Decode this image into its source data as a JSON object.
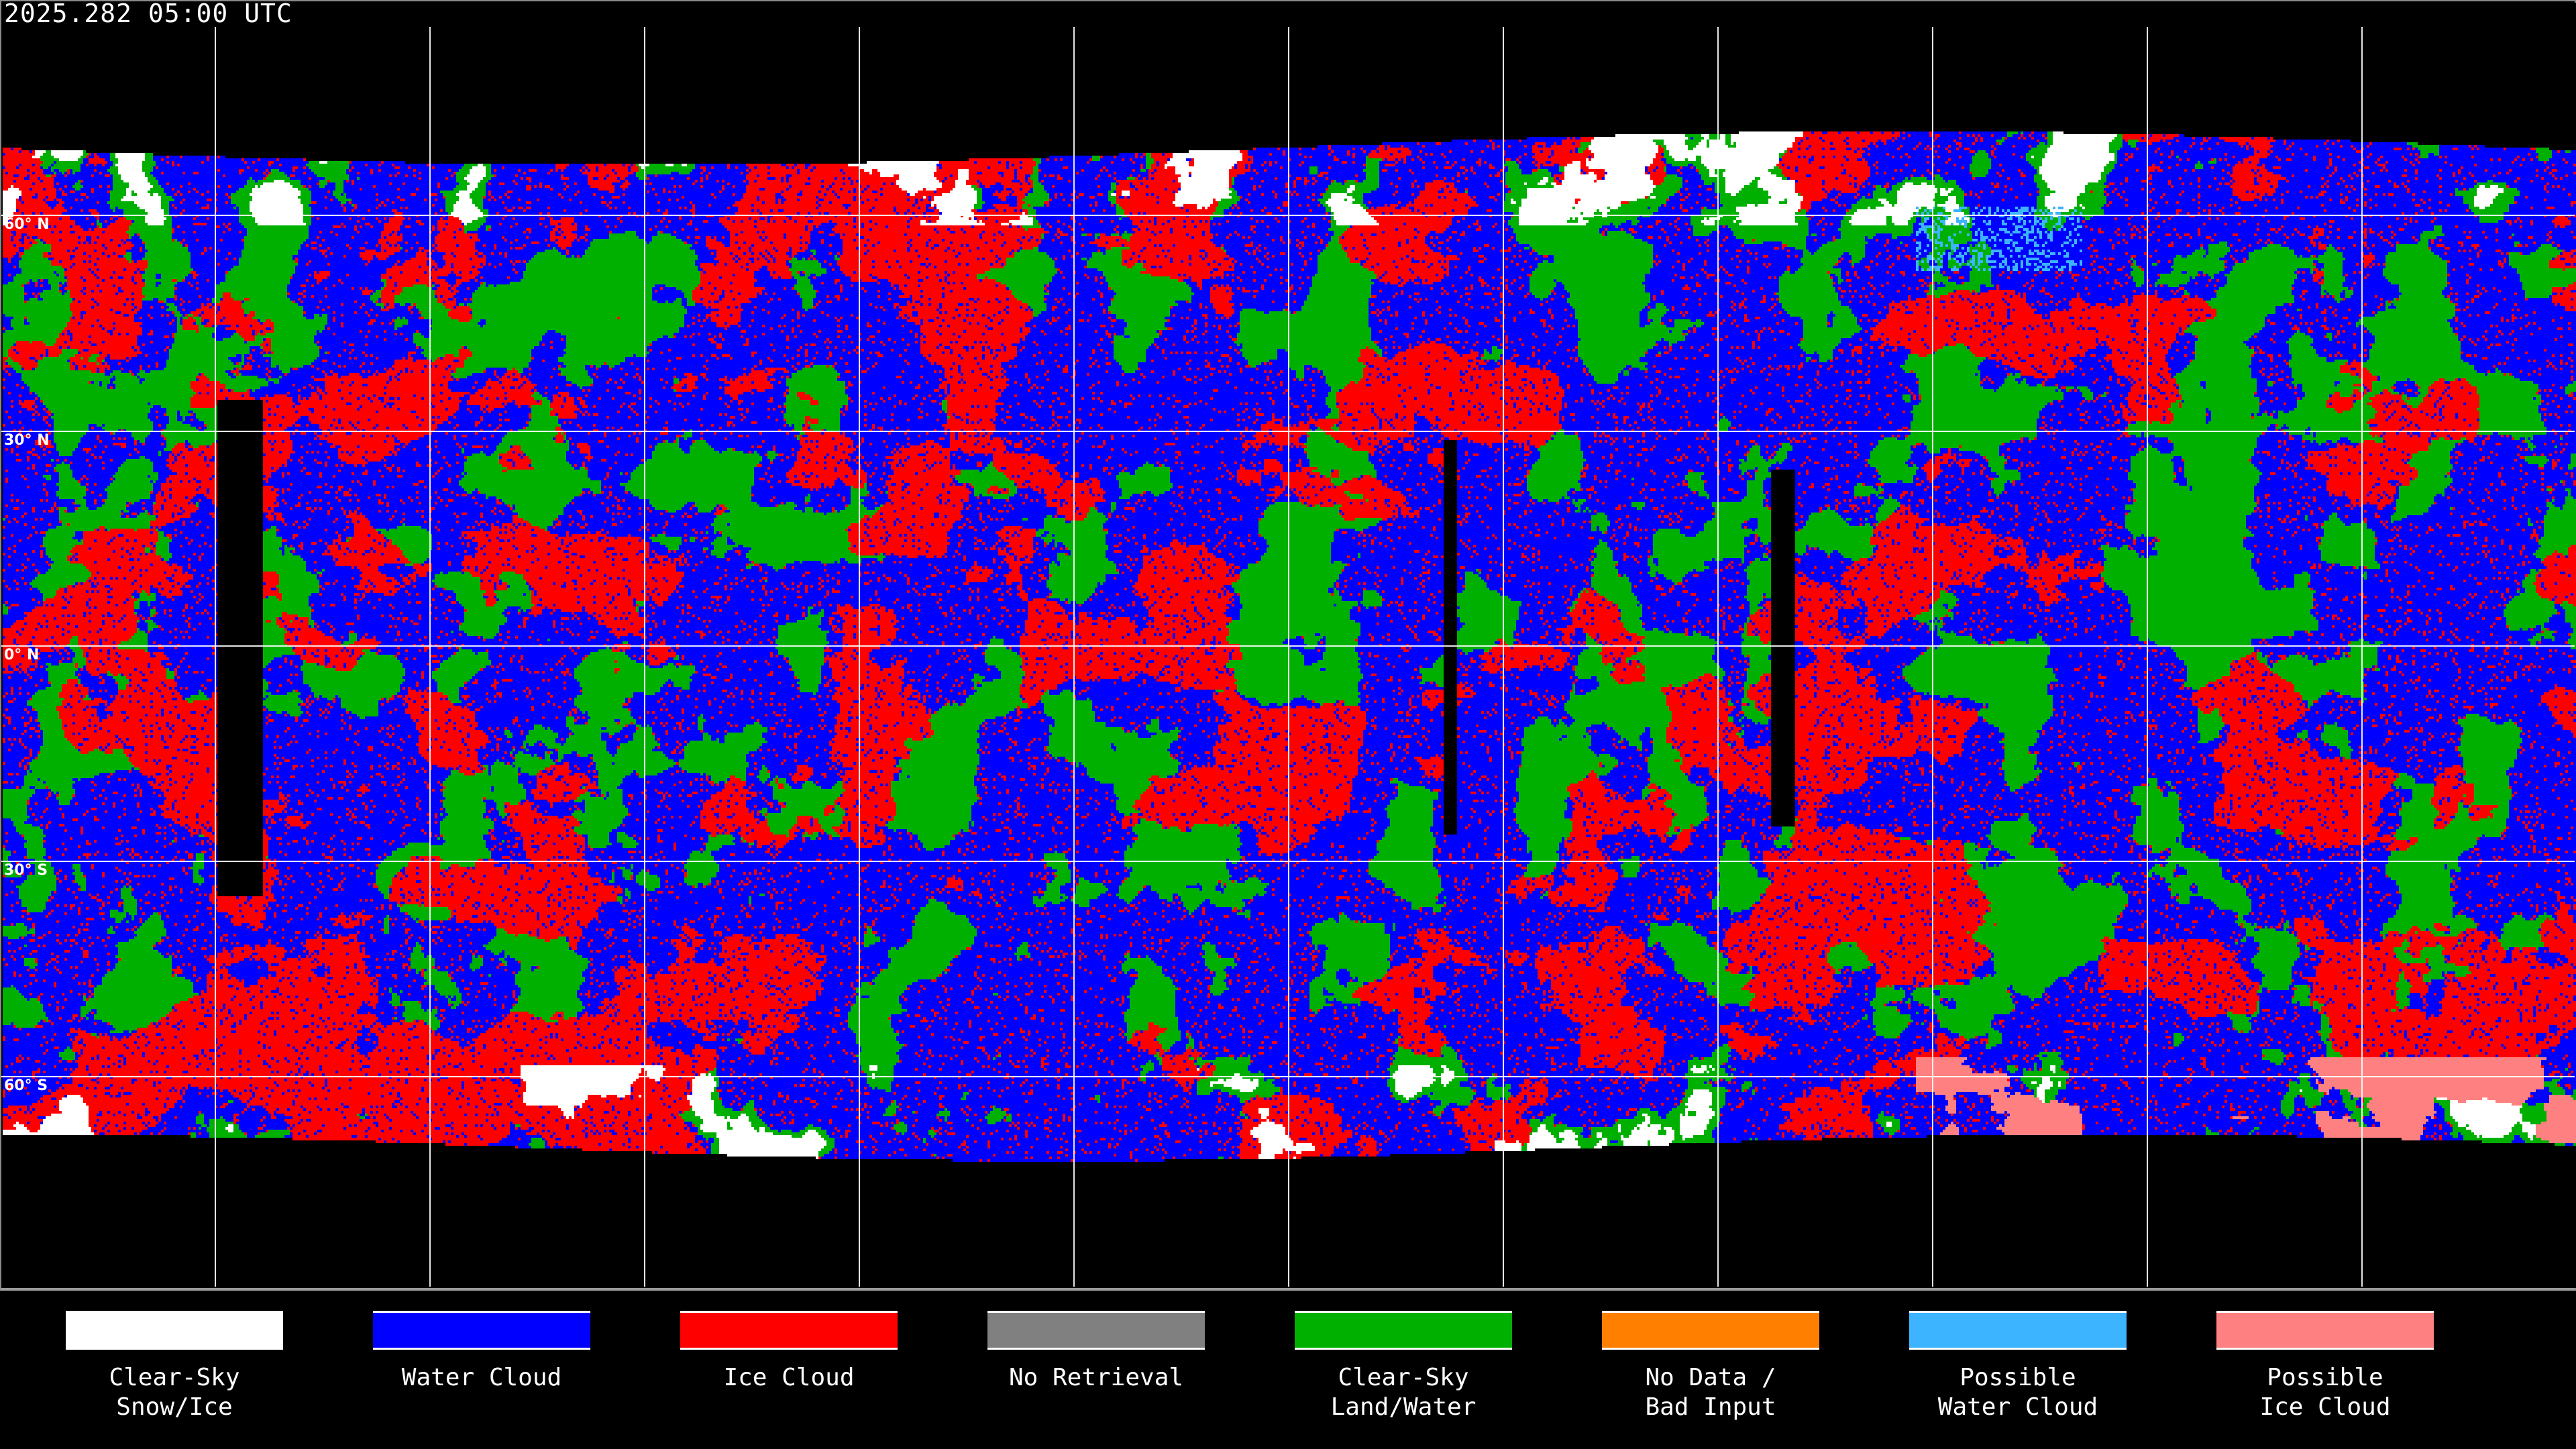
{
  "title": "2025.282 05:00 UTC",
  "grid": {
    "lat_labels": [
      "60° N",
      "30° N",
      "0° N",
      "30° S",
      "60° S"
    ]
  },
  "legend": [
    {
      "label_1": "Clear-Sky",
      "label_2": "Snow/Ice",
      "color": "#ffffff"
    },
    {
      "label_1": "Water Cloud",
      "label_2": "",
      "color": "#0000ff"
    },
    {
      "label_1": "Ice Cloud",
      "label_2": "",
      "color": "#ff0000"
    },
    {
      "label_1": "No Retrieval",
      "label_2": "",
      "color": "#808080"
    },
    {
      "label_1": "Clear-Sky",
      "label_2": "Land/Water",
      "color": "#00b000"
    },
    {
      "label_1": "No Data /",
      "label_2": "Bad Input",
      "color": "#ff8000"
    },
    {
      "label_1": "Possible",
      "label_2": "Water Cloud",
      "color": "#3cb4ff"
    },
    {
      "label_1": "Possible",
      "label_2": "Ice Cloud",
      "color": "#ff8080"
    }
  ]
}
